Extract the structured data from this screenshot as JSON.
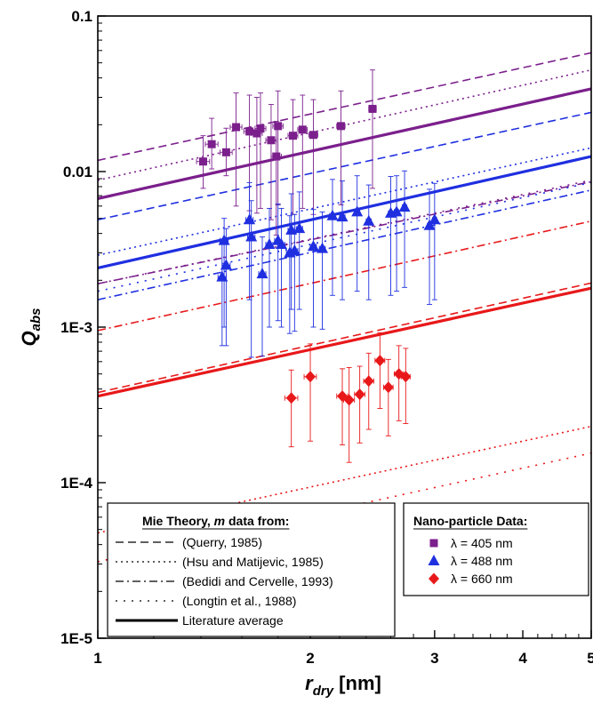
{
  "chart_data": {
    "type": "scatter",
    "xscale": "log",
    "yscale": "log",
    "xlim": [
      1,
      5
    ],
    "ylim": [
      1e-05,
      0.1
    ],
    "x_ticks": [
      {
        "v": 1,
        "label": "1"
      },
      {
        "v": 2,
        "label": "2"
      },
      {
        "v": 3,
        "label": "3"
      },
      {
        "v": 4,
        "label": "4"
      },
      {
        "v": 5,
        "label": "5"
      }
    ],
    "y_ticks": [
      {
        "v": 0.1,
        "label": "0.1"
      },
      {
        "v": 0.01,
        "label": "0.01"
      },
      {
        "v": 0.001,
        "label": "1E-3"
      },
      {
        "v": 0.0001,
        "label": "1E-4"
      },
      {
        "v": 1e-05,
        "label": "1E-5"
      }
    ],
    "xlabel": {
      "main": "r",
      "sub": "dry",
      "suffix": " [nm]"
    },
    "ylabel": {
      "main": "Q",
      "sub": "abs"
    },
    "grid": false,
    "colors": {
      "405": "#7b1f8c",
      "488": "#1f2fe0",
      "660": "#e8181a"
    },
    "theory_lines": [
      {
        "wavelength": "405",
        "style": "dashed",
        "y1": 0.0118,
        "y5": 0.058
      },
      {
        "wavelength": "405",
        "style": "dotted",
        "y1": 0.0088,
        "y5": 0.045
      },
      {
        "wavelength": "405",
        "style": "dashdot",
        "y1": 0.0019,
        "y5": 0.0086
      },
      {
        "wavelength": "405",
        "style": "densedot",
        "y1": 0.0019,
        "y5": 0.0088
      },
      {
        "wavelength": "405",
        "style": "solid",
        "y1": 0.0067,
        "y5": 0.034
      },
      {
        "wavelength": "488",
        "style": "dashed",
        "y1": 0.0049,
        "y5": 0.024
      },
      {
        "wavelength": "488",
        "style": "dotted",
        "y1": 0.0029,
        "y5": 0.0142
      },
      {
        "wavelength": "488",
        "style": "dashdot",
        "y1": 0.0015,
        "y5": 0.0076
      },
      {
        "wavelength": "488",
        "style": "densedot",
        "y1": 0.0017,
        "y5": 0.0085
      },
      {
        "wavelength": "488",
        "style": "solid",
        "y1": 0.0024,
        "y5": 0.0125
      },
      {
        "wavelength": "660",
        "style": "dashed",
        "y1": 0.00038,
        "y5": 0.00192
      },
      {
        "wavelength": "660",
        "style": "dotted",
        "y1": 4.75e-05,
        "y5": 0.00023
      },
      {
        "wavelength": "660",
        "style": "dashdot",
        "y1": 0.00095,
        "y5": 0.0048
      },
      {
        "wavelength": "660",
        "style": "densedot",
        "y1": 3.1e-05,
        "y5": 0.000155
      },
      {
        "wavelength": "660",
        "style": "solid",
        "y1": 0.00036,
        "y5": 0.00178
      }
    ],
    "series": [
      {
        "name": "405",
        "marker": "square",
        "points": [
          {
            "x": 1.41,
            "y": 0.0116,
            "lo": 0.0078,
            "hi": 0.017,
            "xe": 0.03
          },
          {
            "x": 1.45,
            "y": 0.015,
            "lo": 0.0104,
            "hi": 0.022,
            "xe": 0.03
          },
          {
            "x": 1.52,
            "y": 0.0133,
            "lo": 0.0094,
            "hi": 0.019,
            "xe": 0.03
          },
          {
            "x": 1.57,
            "y": 0.0193,
            "lo": 0.006,
            "hi": 0.032,
            "xe": 0.03
          },
          {
            "x": 1.64,
            "y": 0.0181,
            "lo": 0.0056,
            "hi": 0.031,
            "xe": 0.03
          },
          {
            "x": 1.68,
            "y": 0.0176,
            "lo": 0.0054,
            "hi": 0.03,
            "xe": 0.03
          },
          {
            "x": 1.7,
            "y": 0.0189,
            "lo": 0.0058,
            "hi": 0.032,
            "xe": 0.03
          },
          {
            "x": 1.76,
            "y": 0.0159,
            "lo": 0.0049,
            "hi": 0.027,
            "xe": 0.03
          },
          {
            "x": 1.79,
            "y": 0.0125,
            "lo": 0.0039,
            "hi": 0.021,
            "xe": 0.03
          },
          {
            "x": 1.8,
            "y": 0.0196,
            "lo": 0.0061,
            "hi": 0.033,
            "xe": 0.03
          },
          {
            "x": 1.89,
            "y": 0.017,
            "lo": 0.0053,
            "hi": 0.029,
            "xe": 0.03
          },
          {
            "x": 1.95,
            "y": 0.0186,
            "lo": 0.0058,
            "hi": 0.031,
            "xe": 0.03
          },
          {
            "x": 2.02,
            "y": 0.0172,
            "lo": 0.0053,
            "hi": 0.029,
            "xe": 0.03
          },
          {
            "x": 2.21,
            "y": 0.0196,
            "lo": 0.0061,
            "hi": 0.033,
            "xe": 0.03
          },
          {
            "x": 2.45,
            "y": 0.0253,
            "lo": 0.0078,
            "hi": 0.045,
            "xe": 0.03
          }
        ]
      },
      {
        "name": "488",
        "marker": "triangle",
        "points": [
          {
            "x": 1.5,
            "y": 0.0021,
            "lo": 0.00076,
            "hi": 0.0035,
            "xe": 0.02
          },
          {
            "x": 1.51,
            "y": 0.0036,
            "lo": 0.001,
            "hi": 0.005,
            "xe": 0.02
          },
          {
            "x": 1.52,
            "y": 0.0025,
            "lo": 0.00076,
            "hi": 0.0043,
            "xe": 0.02
          },
          {
            "x": 1.64,
            "y": 0.0049,
            "lo": 0.0015,
            "hi": 0.0085,
            "xe": 0.02
          },
          {
            "x": 1.65,
            "y": 0.0038,
            "lo": 0.00064,
            "hi": 0.0065,
            "xe": 0.02
          },
          {
            "x": 1.71,
            "y": 0.0022,
            "lo": 0.00065,
            "hi": 0.0038,
            "xe": 0.02
          },
          {
            "x": 1.75,
            "y": 0.0034,
            "lo": 0.001,
            "hi": 0.0058,
            "xe": 0.02
          },
          {
            "x": 1.8,
            "y": 0.0036,
            "lo": 0.0011,
            "hi": 0.0062,
            "xe": 0.02
          },
          {
            "x": 1.82,
            "y": 0.0034,
            "lo": 0.001,
            "hi": 0.0058,
            "xe": 0.02
          },
          {
            "x": 1.87,
            "y": 0.003,
            "lo": 0.00091,
            "hi": 0.0052,
            "xe": 0.02
          },
          {
            "x": 1.88,
            "y": 0.0042,
            "lo": 0.0013,
            "hi": 0.0072,
            "xe": 0.02
          },
          {
            "x": 1.9,
            "y": 0.0031,
            "lo": 0.00094,
            "hi": 0.0053,
            "xe": 0.02
          },
          {
            "x": 1.93,
            "y": 0.0043,
            "lo": 0.0013,
            "hi": 0.0074,
            "xe": 0.02
          },
          {
            "x": 2.02,
            "y": 0.0033,
            "lo": 0.001,
            "hi": 0.0057,
            "xe": 0.02
          },
          {
            "x": 2.08,
            "y": 0.0032,
            "lo": 0.00097,
            "hi": 0.0055,
            "xe": 0.02
          },
          {
            "x": 2.15,
            "y": 0.0052,
            "lo": 0.0016,
            "hi": 0.0089,
            "xe": 0.02
          },
          {
            "x": 2.22,
            "y": 0.0051,
            "lo": 0.0015,
            "hi": 0.0087,
            "xe": 0.02
          },
          {
            "x": 2.33,
            "y": 0.0055,
            "lo": 0.0017,
            "hi": 0.0094,
            "xe": 0.02
          },
          {
            "x": 2.42,
            "y": 0.0048,
            "lo": 0.0015,
            "hi": 0.0082,
            "xe": 0.02
          },
          {
            "x": 2.6,
            "y": 0.0054,
            "lo": 0.0016,
            "hi": 0.0093,
            "xe": 0.02
          },
          {
            "x": 2.65,
            "y": 0.0055,
            "lo": 0.0017,
            "hi": 0.0094,
            "xe": 0.02
          },
          {
            "x": 2.72,
            "y": 0.0059,
            "lo": 0.0018,
            "hi": 0.0101,
            "xe": 0.02
          },
          {
            "x": 2.95,
            "y": 0.0045,
            "lo": 0.0014,
            "hi": 0.0077,
            "xe": 0.02
          },
          {
            "x": 3.0,
            "y": 0.0049,
            "lo": 0.0015,
            "hi": 0.0084,
            "xe": 0.02
          }
        ]
      },
      {
        "name": "660",
        "marker": "diamond",
        "points": [
          {
            "x": 1.88,
            "y": 0.00035,
            "lo": 0.00017,
            "hi": 0.00053,
            "xe": 0.04
          },
          {
            "x": 2.0,
            "y": 0.00048,
            "lo": 0.000185,
            "hi": 0.00078,
            "xe": 0.04
          },
          {
            "x": 2.22,
            "y": 0.00036,
            "lo": 0.000175,
            "hi": 0.00054,
            "xe": 0.04
          },
          {
            "x": 2.27,
            "y": 0.00034,
            "lo": 0.000135,
            "hi": 0.00055,
            "xe": 0.04
          },
          {
            "x": 2.35,
            "y": 0.00037,
            "lo": 0.00018,
            "hi": 0.00056,
            "xe": 0.04
          },
          {
            "x": 2.42,
            "y": 0.00045,
            "lo": 0.00022,
            "hi": 0.00068,
            "xe": 0.04
          },
          {
            "x": 2.51,
            "y": 0.00061,
            "lo": 0.0003,
            "hi": 0.00092,
            "xe": 0.04
          },
          {
            "x": 2.58,
            "y": 0.00041,
            "lo": 0.0002,
            "hi": 0.00062,
            "xe": 0.04
          },
          {
            "x": 2.67,
            "y": 0.0005,
            "lo": 0.00025,
            "hi": 0.00076,
            "xe": 0.04
          },
          {
            "x": 2.73,
            "y": 0.00048,
            "lo": 0.00024,
            "hi": 0.00073,
            "xe": 0.04
          }
        ]
      }
    ],
    "legend_theory": {
      "title_parts": [
        "Mie Theory, ",
        "m",
        " data from:"
      ],
      "entries": [
        {
          "style": "dashed",
          "label": "(Querry, 1985)"
        },
        {
          "style": "dotted",
          "label": "(Hsu and Matijevic, 1985)"
        },
        {
          "style": "dashdot",
          "label": "(Bedidi and Cervelle, 1993)"
        },
        {
          "style": "densedot",
          "label": "(Longtin et al., 1988)"
        },
        {
          "style": "solid",
          "label": "Literature average"
        }
      ]
    },
    "legend_data": {
      "title": "Nano-particle Data:",
      "entries": [
        {
          "marker": "square",
          "wavelength": "405",
          "label": "λ = 405 nm"
        },
        {
          "marker": "triangle",
          "wavelength": "488",
          "label": "λ = 488 nm"
        },
        {
          "marker": "diamond",
          "wavelength": "660",
          "label": "λ = 660 nm"
        }
      ]
    }
  }
}
